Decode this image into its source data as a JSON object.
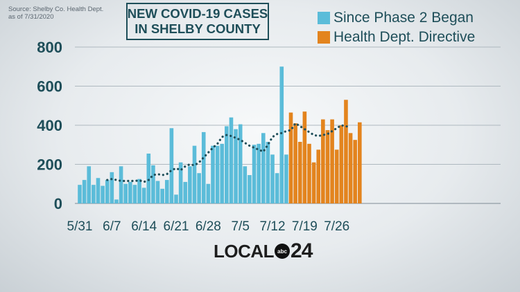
{
  "source": {
    "line1": "Source: Shelby Co. Health Dept.",
    "line2": "as of 7/31/2020"
  },
  "title": {
    "line1": "NEW COVID-19 CASES",
    "line2": "IN SHELBY COUNTY"
  },
  "logo": {
    "text": "LOCAL",
    "network": "abc",
    "number": "24"
  },
  "colors": {
    "phase2": "#5bbcd9",
    "directive": "#e3841e",
    "text": "#1e4e59",
    "trend": "#1e4e59"
  },
  "chart_data": {
    "type": "bar",
    "ylim": [
      0,
      800
    ],
    "yticks": [
      0,
      200,
      400,
      600,
      800
    ],
    "grid": true,
    "legend_position": "top-right",
    "xtick_labels": [
      {
        "index": 0,
        "label": "5/31"
      },
      {
        "index": 7,
        "label": "6/7"
      },
      {
        "index": 14,
        "label": "6/14"
      },
      {
        "index": 21,
        "label": "6/21"
      },
      {
        "index": 28,
        "label": "6/28"
      },
      {
        "index": 35,
        "label": "7/5"
      },
      {
        "index": 42,
        "label": "7/12"
      },
      {
        "index": 49,
        "label": "7/19"
      },
      {
        "index": 56,
        "label": "7/26"
      }
    ],
    "series": [
      {
        "name": "Since Phase 2 Began",
        "start_index": 0,
        "values": [
          95,
          120,
          190,
          95,
          130,
          90,
          120,
          160,
          20,
          190,
          100,
          110,
          95,
          125,
          80,
          255,
          195,
          115,
          75,
          120,
          385,
          45,
          210,
          110,
          190,
          295,
          155,
          365,
          100,
          295,
          295,
          305,
          395,
          440,
          380,
          405,
          190,
          145,
          300,
          305,
          360,
          315,
          250,
          155,
          700,
          250
        ]
      },
      {
        "name": "Health Dept. Directive",
        "start_index": 46,
        "values": [
          465,
          410,
          315,
          470,
          305,
          210,
          275,
          430,
          375,
          430,
          275,
          400,
          530,
          360,
          325,
          415
        ]
      }
    ],
    "trend": {
      "start_index": 6,
      "values": [
        120,
        125,
        120,
        115,
        115,
        115,
        115,
        118,
        110,
        120,
        145,
        150,
        145,
        150,
        170,
        180,
        170,
        190,
        200,
        195,
        210,
        235,
        260,
        285,
        305,
        340,
        350,
        345,
        335,
        325,
        310,
        295,
        285,
        275,
        265,
        300,
        340,
        355,
        360,
        370,
        375,
        410,
        395,
        380,
        365,
        350,
        345,
        350,
        355,
        370,
        385,
        400,
        395,
        390
      ]
    }
  }
}
